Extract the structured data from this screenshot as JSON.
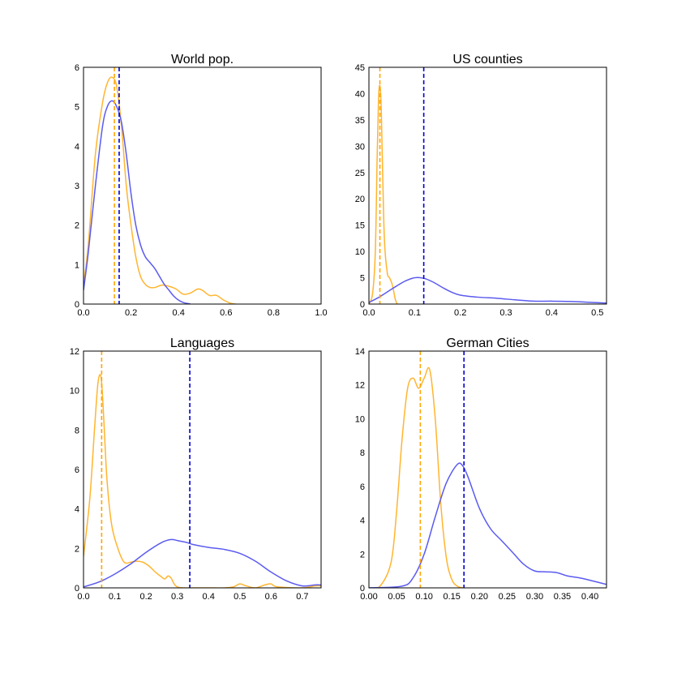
{
  "chart_data": [
    {
      "type": "line",
      "title": "World pop.",
      "xlabel": "",
      "ylabel": "",
      "xlim": [
        0,
        1.0
      ],
      "ylim": [
        0,
        6
      ],
      "xticks": [
        "0.0",
        "0.2",
        "0.4",
        "0.6",
        "0.8",
        "1.0"
      ],
      "yticks": [
        "0",
        "1",
        "2",
        "3",
        "4",
        "5",
        "6"
      ],
      "colors": {
        "orange": "#ffb530",
        "blue": "#5b5bf0",
        "orange_line": "#ffa500",
        "blue_line": "#0000cc"
      },
      "series": [
        {
          "color": "orange",
          "x": [
            0,
            0.02,
            0.05,
            0.08,
            0.1,
            0.12,
            0.14,
            0.16,
            0.18,
            0.2,
            0.22,
            0.24,
            0.26,
            0.28,
            0.3,
            0.33,
            0.36,
            0.39,
            0.42,
            0.45,
            0.48,
            0.5,
            0.53,
            0.56,
            0.59,
            0.62,
            0.64
          ],
          "y": [
            0.5,
            1.5,
            3.8,
            5.1,
            5.6,
            5.75,
            5.5,
            4.5,
            3.0,
            2.0,
            1.2,
            0.7,
            0.5,
            0.42,
            0.42,
            0.48,
            0.45,
            0.38,
            0.25,
            0.28,
            0.38,
            0.35,
            0.22,
            0.22,
            0.1,
            0.02,
            0
          ]
        },
        {
          "color": "blue",
          "x": [
            0,
            0.02,
            0.05,
            0.08,
            0.1,
            0.12,
            0.14,
            0.16,
            0.18,
            0.2,
            0.22,
            0.24,
            0.26,
            0.28,
            0.3,
            0.32,
            0.34,
            0.36,
            0.38,
            0.4,
            0.42,
            0.45
          ],
          "y": [
            0.35,
            1.3,
            3.0,
            4.5,
            5.0,
            5.15,
            5.0,
            4.6,
            3.8,
            2.8,
            2.0,
            1.5,
            1.2,
            1.05,
            0.9,
            0.7,
            0.5,
            0.35,
            0.2,
            0.1,
            0.04,
            0
          ]
        }
      ],
      "vlines": [
        {
          "color": "orange_line",
          "x": 0.13
        },
        {
          "color": "blue_line",
          "x": 0.15
        }
      ]
    },
    {
      "type": "line",
      "title": "US counties",
      "xlabel": "",
      "ylabel": "",
      "xlim": [
        0,
        0.52
      ],
      "ylim": [
        0,
        45
      ],
      "xticks": [
        "0.0",
        "0.1",
        "0.2",
        "0.3",
        "0.4",
        "0.5"
      ],
      "yticks": [
        "0",
        "5",
        "10",
        "15",
        "20",
        "25",
        "30",
        "35",
        "40",
        "45"
      ],
      "colors": {
        "orange": "#ffb530",
        "blue": "#5b5bf0",
        "orange_line": "#ffa500",
        "blue_line": "#0000cc"
      },
      "series": [
        {
          "color": "orange",
          "x": [
            0,
            0.008,
            0.014,
            0.018,
            0.021,
            0.024,
            0.027,
            0.03,
            0.034,
            0.04,
            0.045,
            0.05,
            0.054,
            0.058,
            0.062
          ],
          "y": [
            0,
            2,
            10,
            28,
            39,
            41.5,
            37,
            25,
            12,
            6,
            5,
            4,
            2.5,
            0.8,
            0
          ]
        },
        {
          "color": "blue",
          "x": [
            0,
            0.02,
            0.04,
            0.06,
            0.08,
            0.1,
            0.12,
            0.14,
            0.16,
            0.18,
            0.2,
            0.24,
            0.28,
            0.32,
            0.36,
            0.4,
            0.44,
            0.48,
            0.52
          ],
          "y": [
            0.3,
            1.2,
            2.3,
            3.4,
            4.4,
            5.0,
            4.9,
            4.2,
            3.2,
            2.3,
            1.7,
            1.3,
            1.1,
            0.8,
            0.55,
            0.55,
            0.5,
            0.35,
            0.2
          ]
        }
      ],
      "vlines": [
        {
          "color": "orange_line",
          "x": 0.024
        },
        {
          "color": "blue_line",
          "x": 0.12
        }
      ]
    },
    {
      "type": "line",
      "title": "Languages",
      "xlabel": "",
      "ylabel": "",
      "xlim": [
        0,
        0.76
      ],
      "ylim": [
        0,
        12
      ],
      "xticks": [
        "0.0",
        "0.1",
        "0.2",
        "0.3",
        "0.4",
        "0.5",
        "0.6",
        "0.7"
      ],
      "yticks": [
        "0",
        "2",
        "4",
        "6",
        "8",
        "10",
        "12"
      ],
      "colors": {
        "orange": "#ffb530",
        "blue": "#5b5bf0",
        "orange_line": "#ffa500",
        "blue_line": "#0000cc"
      },
      "series": [
        {
          "color": "orange",
          "x": [
            0,
            0.02,
            0.035,
            0.045,
            0.052,
            0.058,
            0.065,
            0.075,
            0.09,
            0.11,
            0.13,
            0.15,
            0.17,
            0.19,
            0.21,
            0.23,
            0.25,
            0.26,
            0.27,
            0.28,
            0.29,
            0.3,
            0.32,
            0.36,
            0.4,
            0.45,
            0.48,
            0.5,
            0.52,
            0.55,
            0.58,
            0.6,
            0.62,
            0.7,
            0.74,
            0.76
          ],
          "y": [
            1.6,
            4.5,
            8.0,
            10.2,
            10.8,
            10.4,
            8.5,
            5.5,
            3.2,
            2.0,
            1.3,
            1.3,
            1.35,
            1.3,
            1.1,
            0.8,
            0.55,
            0.45,
            0.6,
            0.5,
            0.2,
            0.05,
            0,
            0,
            0,
            0,
            0.05,
            0.2,
            0.1,
            0,
            0.15,
            0.2,
            0.05,
            0,
            0.1,
            0.1
          ]
        },
        {
          "color": "blue",
          "x": [
            0,
            0.05,
            0.1,
            0.15,
            0.2,
            0.25,
            0.28,
            0.3,
            0.33,
            0.35,
            0.4,
            0.45,
            0.5,
            0.55,
            0.6,
            0.65,
            0.7,
            0.74,
            0.76
          ],
          "y": [
            0.05,
            0.3,
            0.7,
            1.2,
            1.8,
            2.3,
            2.45,
            2.4,
            2.3,
            2.2,
            2.05,
            1.95,
            1.75,
            1.35,
            0.8,
            0.35,
            0.1,
            0.15,
            0.15
          ]
        }
      ],
      "vlines": [
        {
          "color": "orange_line",
          "x": 0.058
        },
        {
          "color": "blue_line",
          "x": 0.34
        }
      ]
    },
    {
      "type": "line",
      "title": "German Cities",
      "xlabel": "",
      "ylabel": "",
      "xlim": [
        0,
        0.43
      ],
      "ylim": [
        0,
        14
      ],
      "xticks": [
        "0.00",
        "0.05",
        "0.10",
        "0.15",
        "0.20",
        "0.25",
        "0.30",
        "0.35",
        "0.40"
      ],
      "yticks": [
        "0",
        "2",
        "4",
        "6",
        "8",
        "10",
        "12",
        "14"
      ],
      "colors": {
        "orange": "#ffb530",
        "blue": "#5b5bf0",
        "orange_line": "#ffa500",
        "blue_line": "#0000cc"
      },
      "series": [
        {
          "color": "orange",
          "x": [
            0,
            0.02,
            0.04,
            0.05,
            0.06,
            0.07,
            0.08,
            0.09,
            0.1,
            0.11,
            0.12,
            0.13,
            0.14,
            0.15,
            0.16,
            0.17
          ],
          "y": [
            0,
            0.1,
            1.5,
            4.5,
            8.8,
            11.8,
            12.4,
            11.8,
            12.4,
            12.9,
            10.0,
            5.0,
            1.8,
            0.5,
            0.1,
            0
          ]
        },
        {
          "color": "blue",
          "x": [
            0,
            0.06,
            0.08,
            0.1,
            0.12,
            0.14,
            0.16,
            0.17,
            0.18,
            0.2,
            0.22,
            0.24,
            0.26,
            0.28,
            0.3,
            0.32,
            0.34,
            0.36,
            0.38,
            0.4,
            0.43
          ],
          "y": [
            0,
            0.1,
            0.6,
            2.0,
            4.2,
            6.2,
            7.3,
            7.2,
            6.5,
            4.7,
            3.5,
            2.8,
            2.1,
            1.4,
            1.0,
            0.95,
            0.9,
            0.7,
            0.6,
            0.45,
            0.2
          ]
        }
      ],
      "vlines": [
        {
          "color": "orange_line",
          "x": 0.093
        },
        {
          "color": "blue_line",
          "x": 0.172
        }
      ]
    }
  ]
}
